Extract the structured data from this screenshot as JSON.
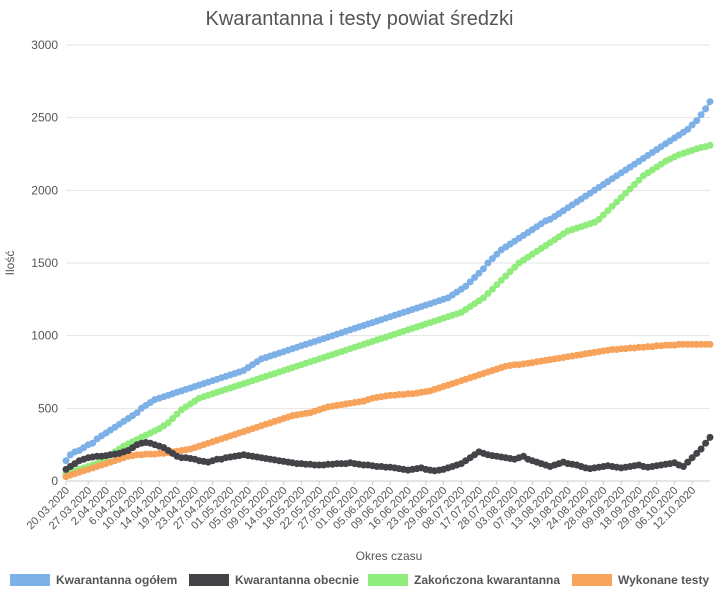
{
  "chart_data": {
    "type": "line",
    "title": "Kwarantanna i testy powiat średzki",
    "xlabel": "Okres czasu",
    "ylabel": "Ilość",
    "ylim": [
      0,
      3000
    ],
    "yticks": [
      "0",
      "500",
      "1000",
      "1500",
      "2000",
      "2500",
      "3000"
    ],
    "grid": true,
    "legend_position": "bottom",
    "x_tick_labels": [
      "20.03.2020",
      "27.03.2020",
      "2.04.2020",
      "6.04.2020",
      "10.04.2020",
      "14.04.2020",
      "19.04.2020",
      "23.04.2020",
      "27.04.2020",
      "01.05.2020",
      "05.05.2020",
      "09.05.2020",
      "14.05.2020",
      "18.05.2020",
      "22.05.2020",
      "27.05.2020",
      "01.06.2020",
      "05.06.2020",
      "09.06.2020",
      "16.06.2020",
      "23.06.2020",
      "29.06.2020",
      "08.07.2020",
      "17.07.2020",
      "28.07.2020",
      "03.08.2020",
      "07.08.2020",
      "13.08.2020",
      "19.08.2020",
      "24.08.2020",
      "28.08.2020",
      "09.09.2020",
      "18.09.2020",
      "29.09.2020",
      "06.10.2020",
      "12.10.2020"
    ],
    "x_tick_positions": [
      0,
      5,
      9,
      13,
      17,
      21,
      25,
      29,
      33,
      37,
      41,
      45,
      49,
      53,
      57,
      61,
      65,
      69,
      73,
      77,
      81,
      85,
      89,
      93,
      97,
      101,
      105,
      109,
      113,
      117,
      121,
      125,
      129,
      133,
      137,
      141
    ],
    "n_points": 146,
    "series": [
      {
        "name": "Kwarantanna ogółem",
        "color": "#7eb0e8",
        "values": [
          140,
          180,
          200,
          210,
          230,
          250,
          260,
          290,
          310,
          330,
          350,
          370,
          390,
          410,
          430,
          450,
          470,
          500,
          520,
          540,
          560,
          570,
          580,
          590,
          600,
          610,
          620,
          630,
          640,
          650,
          660,
          670,
          680,
          690,
          700,
          710,
          720,
          730,
          740,
          750,
          760,
          780,
          800,
          820,
          840,
          850,
          860,
          870,
          880,
          890,
          900,
          910,
          920,
          930,
          940,
          950,
          960,
          970,
          980,
          990,
          1000,
          1010,
          1020,
          1030,
          1040,
          1050,
          1060,
          1070,
          1080,
          1090,
          1100,
          1110,
          1120,
          1130,
          1140,
          1150,
          1160,
          1170,
          1180,
          1190,
          1200,
          1210,
          1220,
          1230,
          1240,
          1250,
          1260,
          1280,
          1300,
          1320,
          1340,
          1370,
          1400,
          1430,
          1460,
          1500,
          1530,
          1560,
          1590,
          1610,
          1630,
          1650,
          1670,
          1690,
          1710,
          1730,
          1750,
          1770,
          1790,
          1800,
          1820,
          1840,
          1860,
          1880,
          1900,
          1920,
          1940,
          1960,
          1980,
          2000,
          2020,
          2040,
          2060,
          2080,
          2100,
          2120,
          2140,
          2160,
          2180,
          2200,
          2220,
          2240,
          2260,
          2280,
          2300,
          2320,
          2340,
          2360,
          2380,
          2400,
          2420,
          2450,
          2480,
          2520,
          2560,
          2610
        ]
      },
      {
        "name": "Kwarantanna obecnie",
        "color": "#434348",
        "values": [
          80,
          100,
          120,
          140,
          150,
          160,
          165,
          170,
          170,
          175,
          180,
          185,
          190,
          200,
          210,
          230,
          250,
          260,
          265,
          260,
          250,
          240,
          230,
          210,
          190,
          170,
          160,
          160,
          155,
          150,
          140,
          135,
          130,
          140,
          150,
          150,
          160,
          165,
          170,
          175,
          180,
          175,
          170,
          165,
          160,
          155,
          150,
          145,
          140,
          135,
          130,
          125,
          120,
          120,
          115,
          115,
          110,
          110,
          110,
          115,
          115,
          120,
          120,
          120,
          125,
          120,
          115,
          110,
          110,
          105,
          100,
          100,
          95,
          95,
          90,
          85,
          80,
          75,
          80,
          85,
          90,
          80,
          75,
          70,
          75,
          80,
          90,
          100,
          110,
          120,
          140,
          160,
          180,
          200,
          190,
          180,
          175,
          170,
          165,
          160,
          155,
          150,
          160,
          170,
          150,
          140,
          130,
          120,
          110,
          100,
          110,
          120,
          130,
          120,
          115,
          110,
          100,
          90,
          85,
          90,
          95,
          100,
          105,
          100,
          95,
          90,
          95,
          100,
          105,
          110,
          100,
          95,
          100,
          105,
          110,
          115,
          120,
          125,
          110,
          100,
          130,
          160,
          190,
          220,
          260,
          300
        ]
      },
      {
        "name": "Zakończona kwarantanna",
        "color": "#90ed7d",
        "values": [
          50,
          60,
          70,
          80,
          90,
          100,
          110,
          120,
          140,
          160,
          180,
          200,
          220,
          240,
          255,
          270,
          285,
          300,
          315,
          330,
          345,
          360,
          380,
          400,
          430,
          460,
          490,
          510,
          530,
          550,
          570,
          580,
          590,
          600,
          610,
          620,
          630,
          640,
          650,
          660,
          670,
          680,
          690,
          700,
          710,
          720,
          730,
          740,
          750,
          760,
          770,
          780,
          790,
          800,
          810,
          820,
          830,
          840,
          850,
          860,
          870,
          880,
          890,
          900,
          910,
          920,
          930,
          940,
          950,
          960,
          970,
          980,
          990,
          1000,
          1010,
          1020,
          1030,
          1040,
          1050,
          1060,
          1070,
          1080,
          1090,
          1100,
          1110,
          1120,
          1130,
          1140,
          1150,
          1160,
          1180,
          1200,
          1220,
          1240,
          1260,
          1290,
          1320,
          1350,
          1380,
          1410,
          1440,
          1470,
          1500,
          1520,
          1540,
          1560,
          1580,
          1600,
          1620,
          1640,
          1660,
          1680,
          1700,
          1720,
          1730,
          1740,
          1750,
          1760,
          1770,
          1780,
          1800,
          1830,
          1860,
          1890,
          1920,
          1950,
          1980,
          2010,
          2040,
          2070,
          2100,
          2120,
          2140,
          2160,
          2180,
          2200,
          2215,
          2230,
          2245,
          2255,
          2265,
          2275,
          2285,
          2295,
          2300,
          2310
        ]
      },
      {
        "name": "Wykonane testy",
        "color": "#f7a35c",
        "values": [
          30,
          40,
          50,
          60,
          70,
          80,
          90,
          100,
          110,
          120,
          130,
          140,
          150,
          160,
          170,
          175,
          180,
          180,
          185,
          185,
          185,
          190,
          190,
          195,
          200,
          205,
          210,
          215,
          220,
          230,
          240,
          250,
          260,
          270,
          280,
          290,
          300,
          310,
          320,
          330,
          340,
          350,
          360,
          370,
          380,
          390,
          400,
          410,
          420,
          430,
          440,
          450,
          455,
          460,
          465,
          470,
          480,
          490,
          500,
          510,
          515,
          520,
          525,
          530,
          535,
          540,
          545,
          550,
          560,
          570,
          575,
          580,
          585,
          590,
          590,
          595,
          595,
          600,
          600,
          605,
          610,
          615,
          620,
          630,
          640,
          650,
          660,
          670,
          680,
          690,
          700,
          710,
          720,
          730,
          740,
          750,
          760,
          770,
          780,
          790,
          795,
          800,
          800,
          805,
          810,
          815,
          820,
          825,
          830,
          835,
          840,
          845,
          850,
          855,
          860,
          865,
          870,
          875,
          880,
          885,
          890,
          895,
          900,
          905,
          905,
          910,
          910,
          915,
          915,
          920,
          920,
          925,
          925,
          930,
          930,
          935,
          935,
          935,
          940,
          940,
          940,
          940,
          940,
          940,
          940,
          940
        ]
      }
    ]
  }
}
